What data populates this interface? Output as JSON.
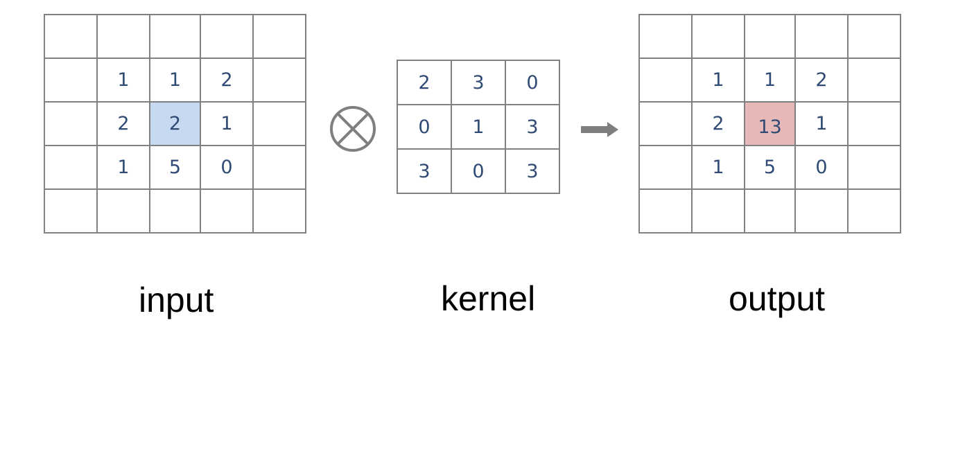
{
  "input": {
    "caption": "input",
    "cells": [
      [
        "",
        "",
        "",
        "",
        ""
      ],
      [
        "",
        "1",
        "1",
        "2",
        ""
      ],
      [
        "",
        "2",
        "2",
        "1",
        ""
      ],
      [
        "",
        "1",
        "5",
        "0",
        ""
      ],
      [
        "",
        "",
        "",
        "",
        ""
      ]
    ],
    "highlight_cell": [
      2,
      2
    ],
    "highlight_color": "#c6d9f1"
  },
  "operator": {
    "symbol": "⊗",
    "icon": "circled-times-icon"
  },
  "kernel": {
    "caption": "kernel",
    "cells": [
      [
        "2",
        "3",
        "0"
      ],
      [
        "0",
        "1",
        "3"
      ],
      [
        "3",
        "0",
        "3"
      ]
    ]
  },
  "arrow": {
    "icon": "right-arrow-icon"
  },
  "output": {
    "caption": "output",
    "cells": [
      [
        "",
        "",
        "",
        "",
        ""
      ],
      [
        "",
        "1",
        "1",
        "2",
        ""
      ],
      [
        "",
        "2",
        "13",
        "1",
        ""
      ],
      [
        "",
        "1",
        "5",
        "0",
        ""
      ],
      [
        "",
        "",
        "",
        "",
        ""
      ]
    ],
    "highlight_cell": [
      2,
      2
    ],
    "highlight_color": "#e6b9b8"
  },
  "colors": {
    "grid_line": "#7f7f7f",
    "number_text": "#2f4a74",
    "caption_text": "#000000"
  }
}
